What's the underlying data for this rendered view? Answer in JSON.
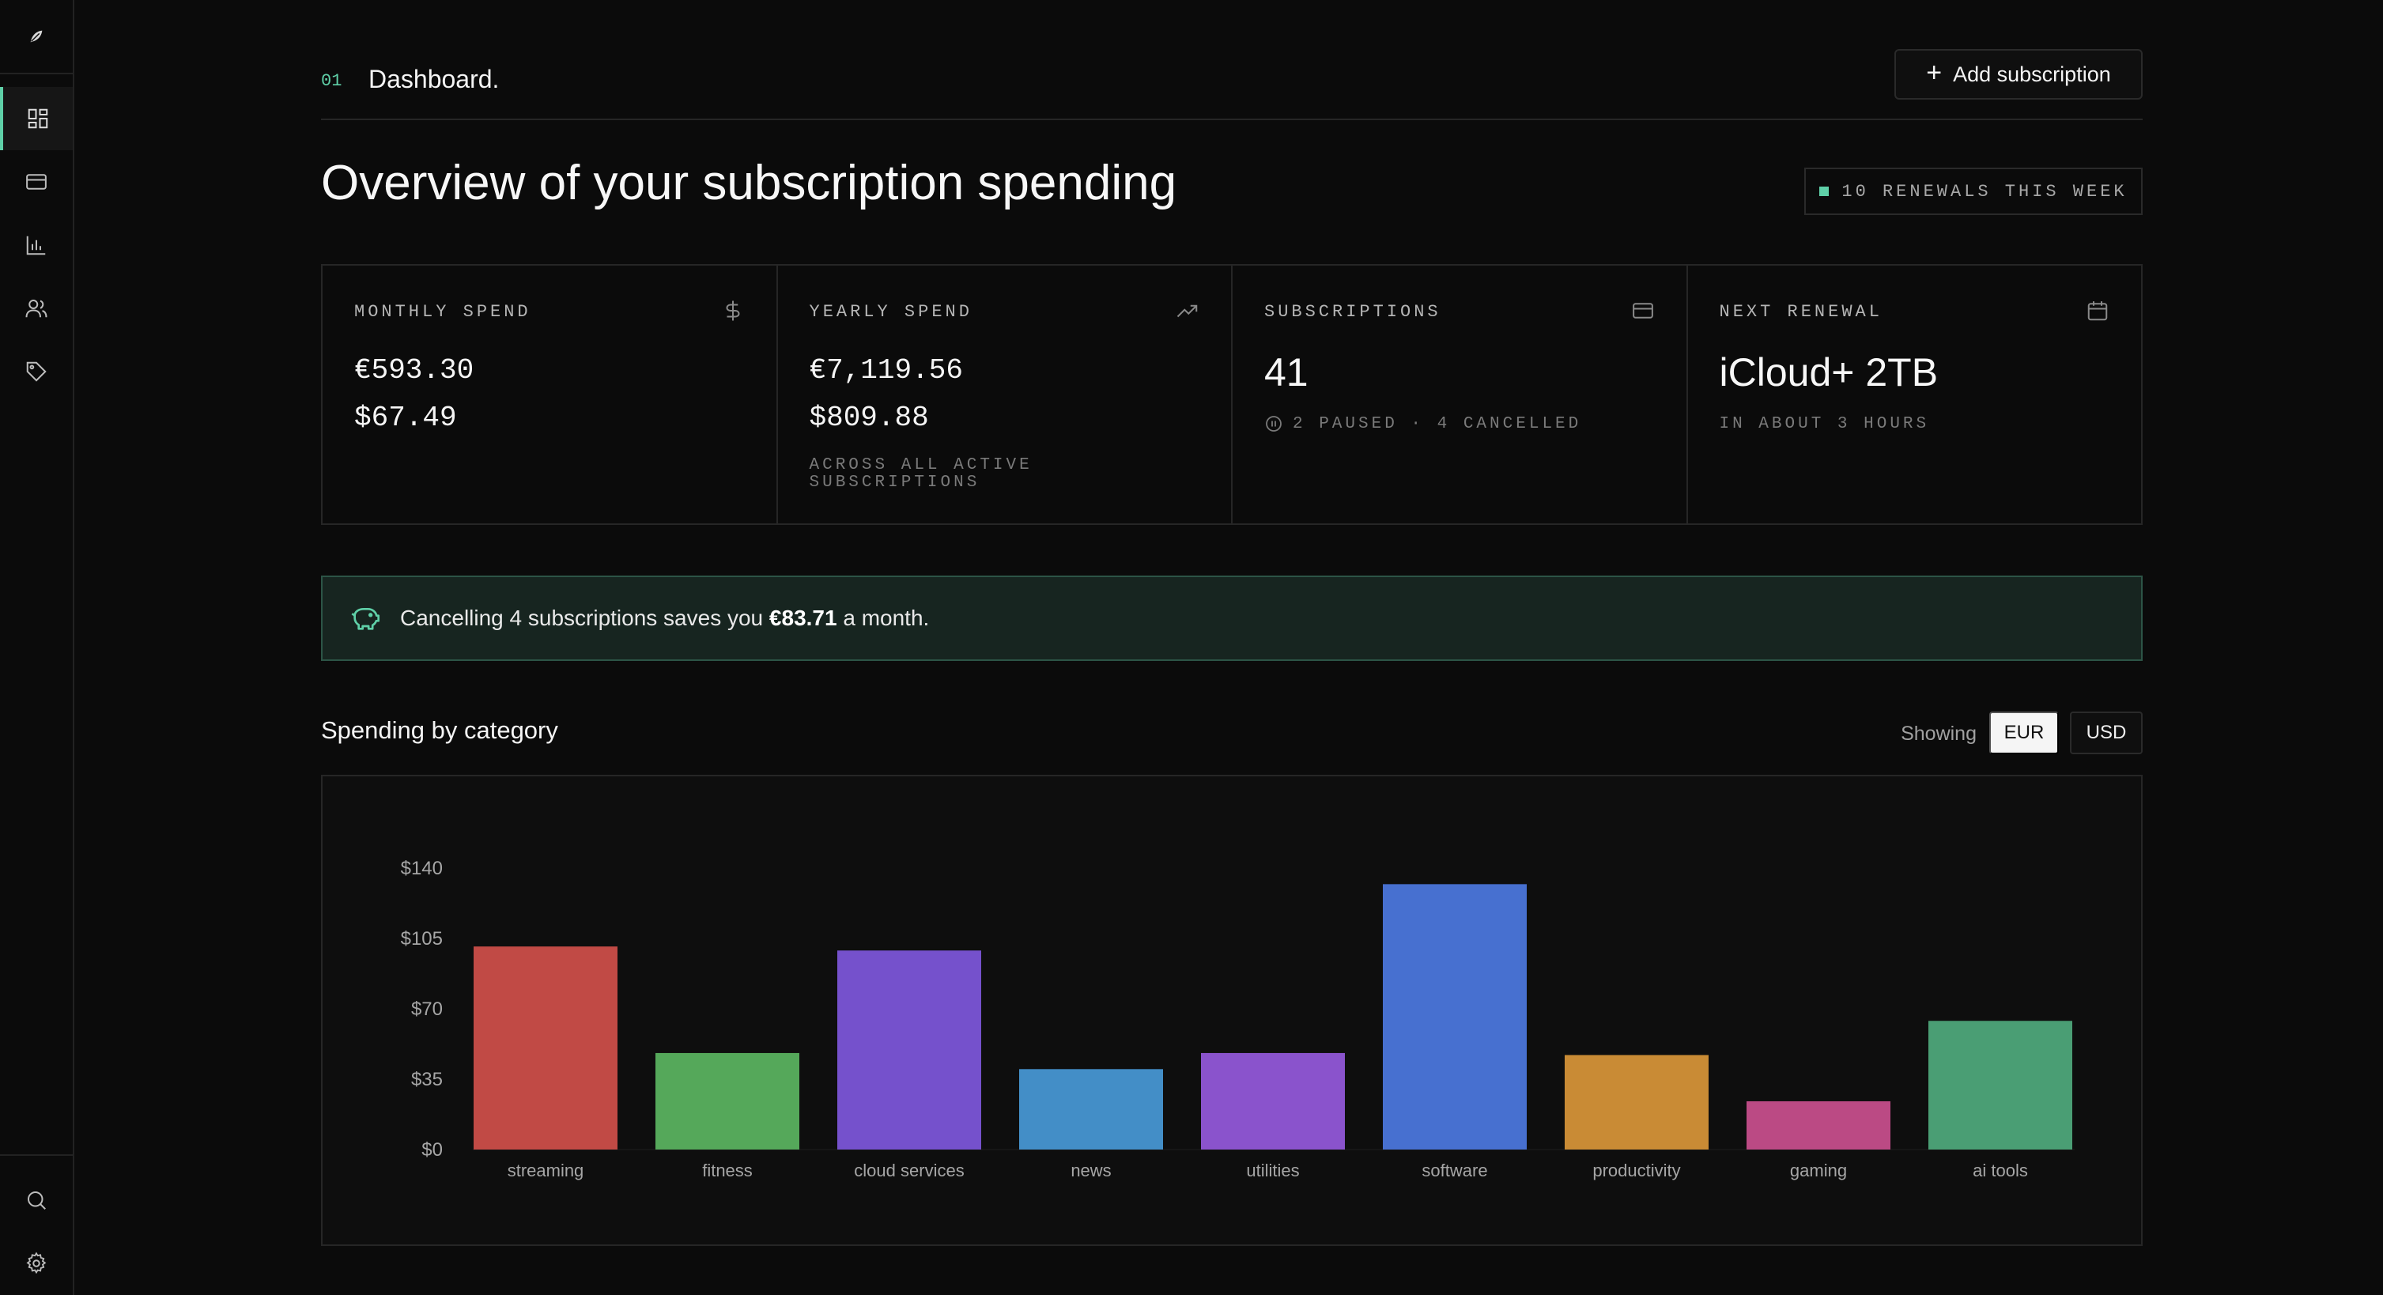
{
  "sidebar": {
    "logo": "leaf-logo-icon",
    "items": [
      {
        "icon": "dashboard-icon",
        "active": true
      },
      {
        "icon": "credit-card-icon",
        "active": false
      },
      {
        "icon": "bar-chart-icon",
        "active": false
      },
      {
        "icon": "users-icon",
        "active": false
      },
      {
        "icon": "tag-icon",
        "active": false
      }
    ],
    "bottom_items": [
      {
        "icon": "search-icon"
      },
      {
        "icon": "gear-icon"
      }
    ]
  },
  "header": {
    "number": "01",
    "title": "Dashboard.",
    "add_button_label": "Add subscription"
  },
  "page": {
    "title": "Overview of your subscription spending",
    "renewals_badge": "10 RENEWALS THIS WEEK"
  },
  "stats": {
    "monthly": {
      "label": "MONTHLY SPEND",
      "value_eur": "€593.30",
      "value_usd": "$67.49"
    },
    "yearly": {
      "label": "YEARLY SPEND",
      "value_eur": "€7,119.56",
      "value_usd": "$809.88",
      "sub_line1": "ACROSS ALL ACTIVE",
      "sub_line2": "SUBSCRIPTIONS"
    },
    "subscriptions": {
      "label": "SUBSCRIPTIONS",
      "value": "41",
      "sub": "2 PAUSED · 4 CANCELLED"
    },
    "next_renewal": {
      "label": "NEXT RENEWAL",
      "value": "iCloud+ 2TB",
      "sub": "IN ABOUT 3 HOURS"
    }
  },
  "savings": {
    "prefix": "Cancelling 4 subscriptions saves you ",
    "amount": "€83.71",
    "suffix": " a month."
  },
  "category_section": {
    "title": "Spending by category",
    "showing_label": "Showing",
    "currency_options": [
      "EUR",
      "USD"
    ],
    "selected_currency": "EUR"
  },
  "colors": {
    "accent": "#5fd0a8"
  },
  "chart_data": {
    "type": "bar",
    "categories": [
      "streaming",
      "fitness",
      "cloud services",
      "news",
      "utilities",
      "software",
      "productivity",
      "gaming",
      "ai tools"
    ],
    "values": [
      101,
      48,
      99,
      40,
      48,
      132,
      47,
      24,
      64
    ],
    "colors": [
      "#c14a45",
      "#55a85a",
      "#7551cc",
      "#438ec7",
      "#8a53cc",
      "#4770d0",
      "#c98b35",
      "#bb4a84",
      "#4a9e74"
    ],
    "yticks": [
      0,
      35,
      70,
      105,
      140
    ],
    "ytick_labels": [
      "$0",
      "$35",
      "$70",
      "$105",
      "$140"
    ],
    "ylim": [
      0,
      140
    ],
    "grid": false,
    "title": "",
    "xlabel": "",
    "ylabel": ""
  }
}
